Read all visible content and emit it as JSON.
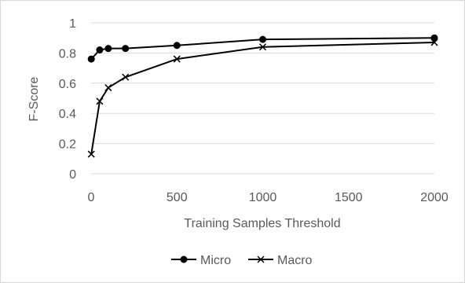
{
  "chart_data": {
    "type": "line",
    "title": "",
    "xlabel": "Training Samples Threshold",
    "ylabel": "F-Score",
    "xlim": [
      0,
      2000
    ],
    "ylim": [
      0,
      1
    ],
    "xticks": [
      0,
      500,
      1000,
      1500,
      2000
    ],
    "yticks": [
      0,
      0.2,
      0.4,
      0.6,
      0.8,
      1
    ],
    "xtick_labels": [
      "0",
      "500",
      "1000",
      "1500",
      "2000"
    ],
    "ytick_labels": [
      "0",
      "0.2",
      "0.4",
      "0.6",
      "0.8",
      "1"
    ],
    "grid": "horizontal",
    "legend_position": "bottom",
    "series": [
      {
        "name": "Micro",
        "marker": "circle",
        "color": "#000000",
        "x": [
          1,
          50,
          100,
          200,
          500,
          1000,
          2000
        ],
        "y": [
          0.76,
          0.82,
          0.83,
          0.83,
          0.85,
          0.89,
          0.9
        ]
      },
      {
        "name": "Macro",
        "marker": "x",
        "color": "#000000",
        "x": [
          1,
          50,
          100,
          200,
          500,
          1000,
          2000
        ],
        "y": [
          0.13,
          0.48,
          0.57,
          0.64,
          0.76,
          0.84,
          0.87
        ]
      }
    ]
  }
}
